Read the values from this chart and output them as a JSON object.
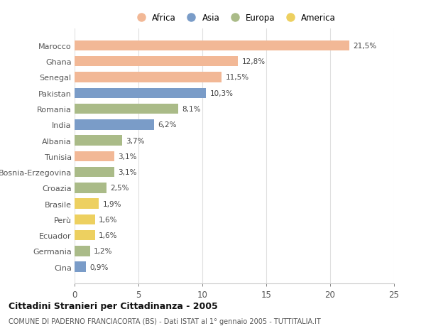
{
  "countries": [
    "Marocco",
    "Ghana",
    "Senegal",
    "Pakistan",
    "Romania",
    "India",
    "Albania",
    "Tunisia",
    "Bosnia-Erzegovina",
    "Croazia",
    "Brasile",
    "Perù",
    "Ecuador",
    "Germania",
    "Cina"
  ],
  "values": [
    21.5,
    12.8,
    11.5,
    10.3,
    8.1,
    6.2,
    3.7,
    3.1,
    3.1,
    2.5,
    1.9,
    1.6,
    1.6,
    1.2,
    0.9
  ],
  "labels": [
    "21,5%",
    "12,8%",
    "11,5%",
    "10,3%",
    "8,1%",
    "6,2%",
    "3,7%",
    "3,1%",
    "3,1%",
    "2,5%",
    "1,9%",
    "1,6%",
    "1,6%",
    "1,2%",
    "0,9%"
  ],
  "continents": [
    "Africa",
    "Africa",
    "Africa",
    "Asia",
    "Europa",
    "Asia",
    "Europa",
    "Africa",
    "Europa",
    "Europa",
    "America",
    "America",
    "America",
    "Europa",
    "Asia"
  ],
  "colors": {
    "Africa": "#F2B896",
    "Asia": "#7A9CC8",
    "Europa": "#AABB88",
    "America": "#EDD060"
  },
  "legend_order": [
    "Africa",
    "Asia",
    "Europa",
    "America"
  ],
  "title": "Cittadini Stranieri per Cittadinanza - 2005",
  "subtitle": "COMUNE DI PADERNO FRANCIACORTA (BS) - Dati ISTAT al 1° gennaio 2005 - TUTTITALIA.IT",
  "xlim": [
    0,
    25
  ],
  "xticks": [
    0,
    5,
    10,
    15,
    20,
    25
  ],
  "background_color": "#ffffff",
  "bar_height": 0.65,
  "grid_color": "#e0e0e0"
}
